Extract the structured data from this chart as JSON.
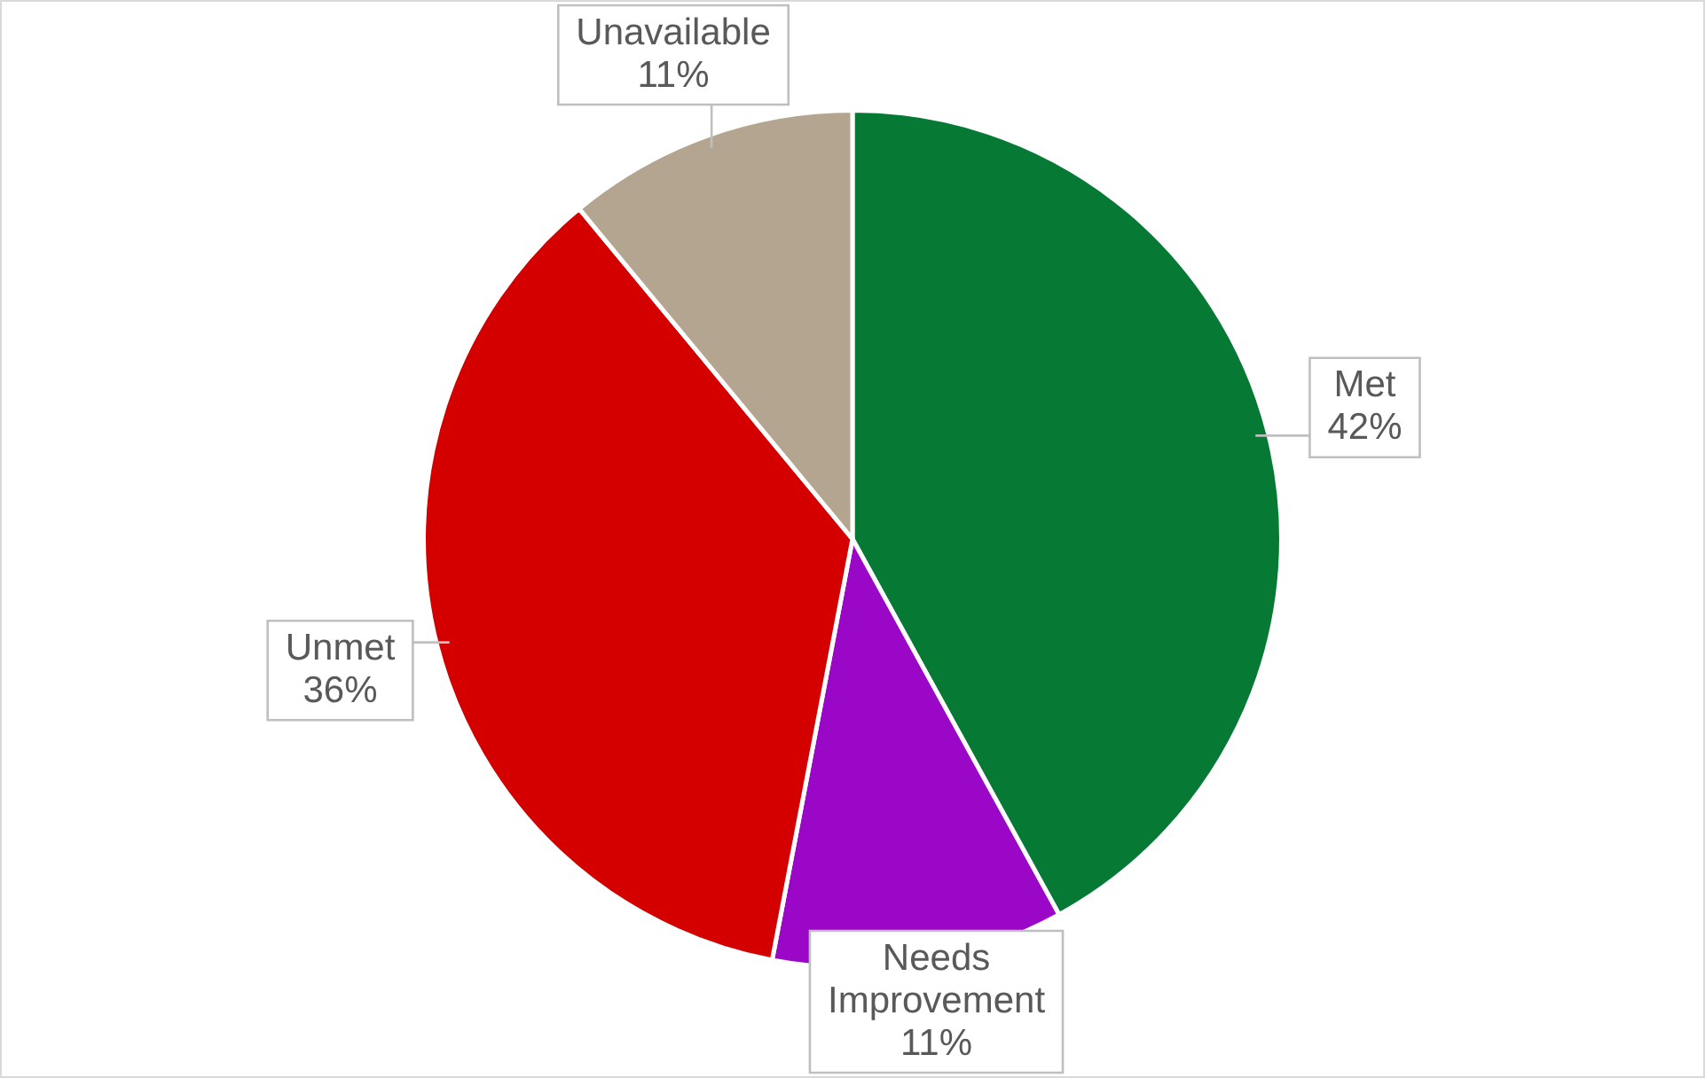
{
  "chart_data": {
    "type": "pie",
    "categories": [
      "Met",
      "Needs Improvement",
      "Unmet",
      "Unavailable"
    ],
    "values": [
      42,
      11,
      36,
      11
    ],
    "value_labels": [
      "42%",
      "11%",
      "36%",
      "11%"
    ],
    "colors": [
      "#067a35",
      "#9b07c6",
      "#d40000",
      "#b3a58f"
    ],
    "legend": false
  }
}
